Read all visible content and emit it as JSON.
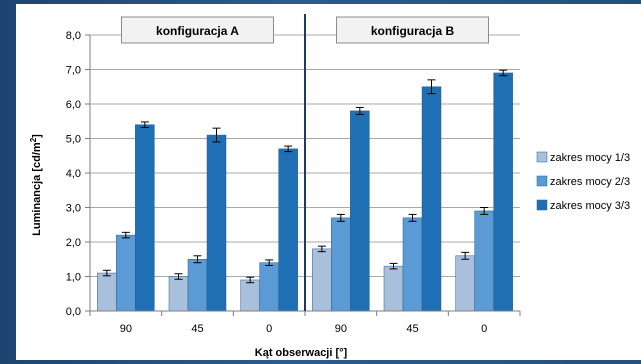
{
  "chart_data": {
    "type": "bar",
    "ylabel_main": "Luminancja [cd/m",
    "ylabel_sup": "2",
    "ylabel_end": "]",
    "xlabel": "Kąt obserwacji [°]",
    "ylim": [
      0,
      8
    ],
    "yticks": [
      "0,0",
      "1,0",
      "2,0",
      "3,0",
      "4,0",
      "5,0",
      "6,0",
      "7,0",
      "8,0"
    ],
    "grid": true,
    "legend_position": "right",
    "groups": [
      {
        "label": "konfiguracja A",
        "categories": [
          "90",
          "45",
          "0"
        ]
      },
      {
        "label": "konfiguracja B",
        "categories": [
          "90",
          "45",
          "0"
        ]
      }
    ],
    "categories": [
      "90",
      "45",
      "0",
      "90",
      "45",
      "0"
    ],
    "series": [
      {
        "name": "zakres mocy 1/3",
        "color": "#a8c0dc",
        "values": [
          1.1,
          1.0,
          0.9,
          1.8,
          1.3,
          1.6
        ],
        "errors": [
          0.08,
          0.08,
          0.08,
          0.08,
          0.08,
          0.1
        ]
      },
      {
        "name": "zakres mocy 2/3",
        "color": "#5b9bd5",
        "values": [
          2.2,
          1.5,
          1.4,
          2.7,
          2.7,
          2.9
        ],
        "errors": [
          0.08,
          0.1,
          0.08,
          0.1,
          0.1,
          0.1
        ]
      },
      {
        "name": "zakres mocy 3/3",
        "color": "#1f6fb5",
        "values": [
          5.4,
          5.1,
          4.7,
          5.8,
          6.5,
          6.9
        ],
        "errors": [
          0.08,
          0.2,
          0.08,
          0.1,
          0.2,
          0.08
        ]
      }
    ]
  }
}
